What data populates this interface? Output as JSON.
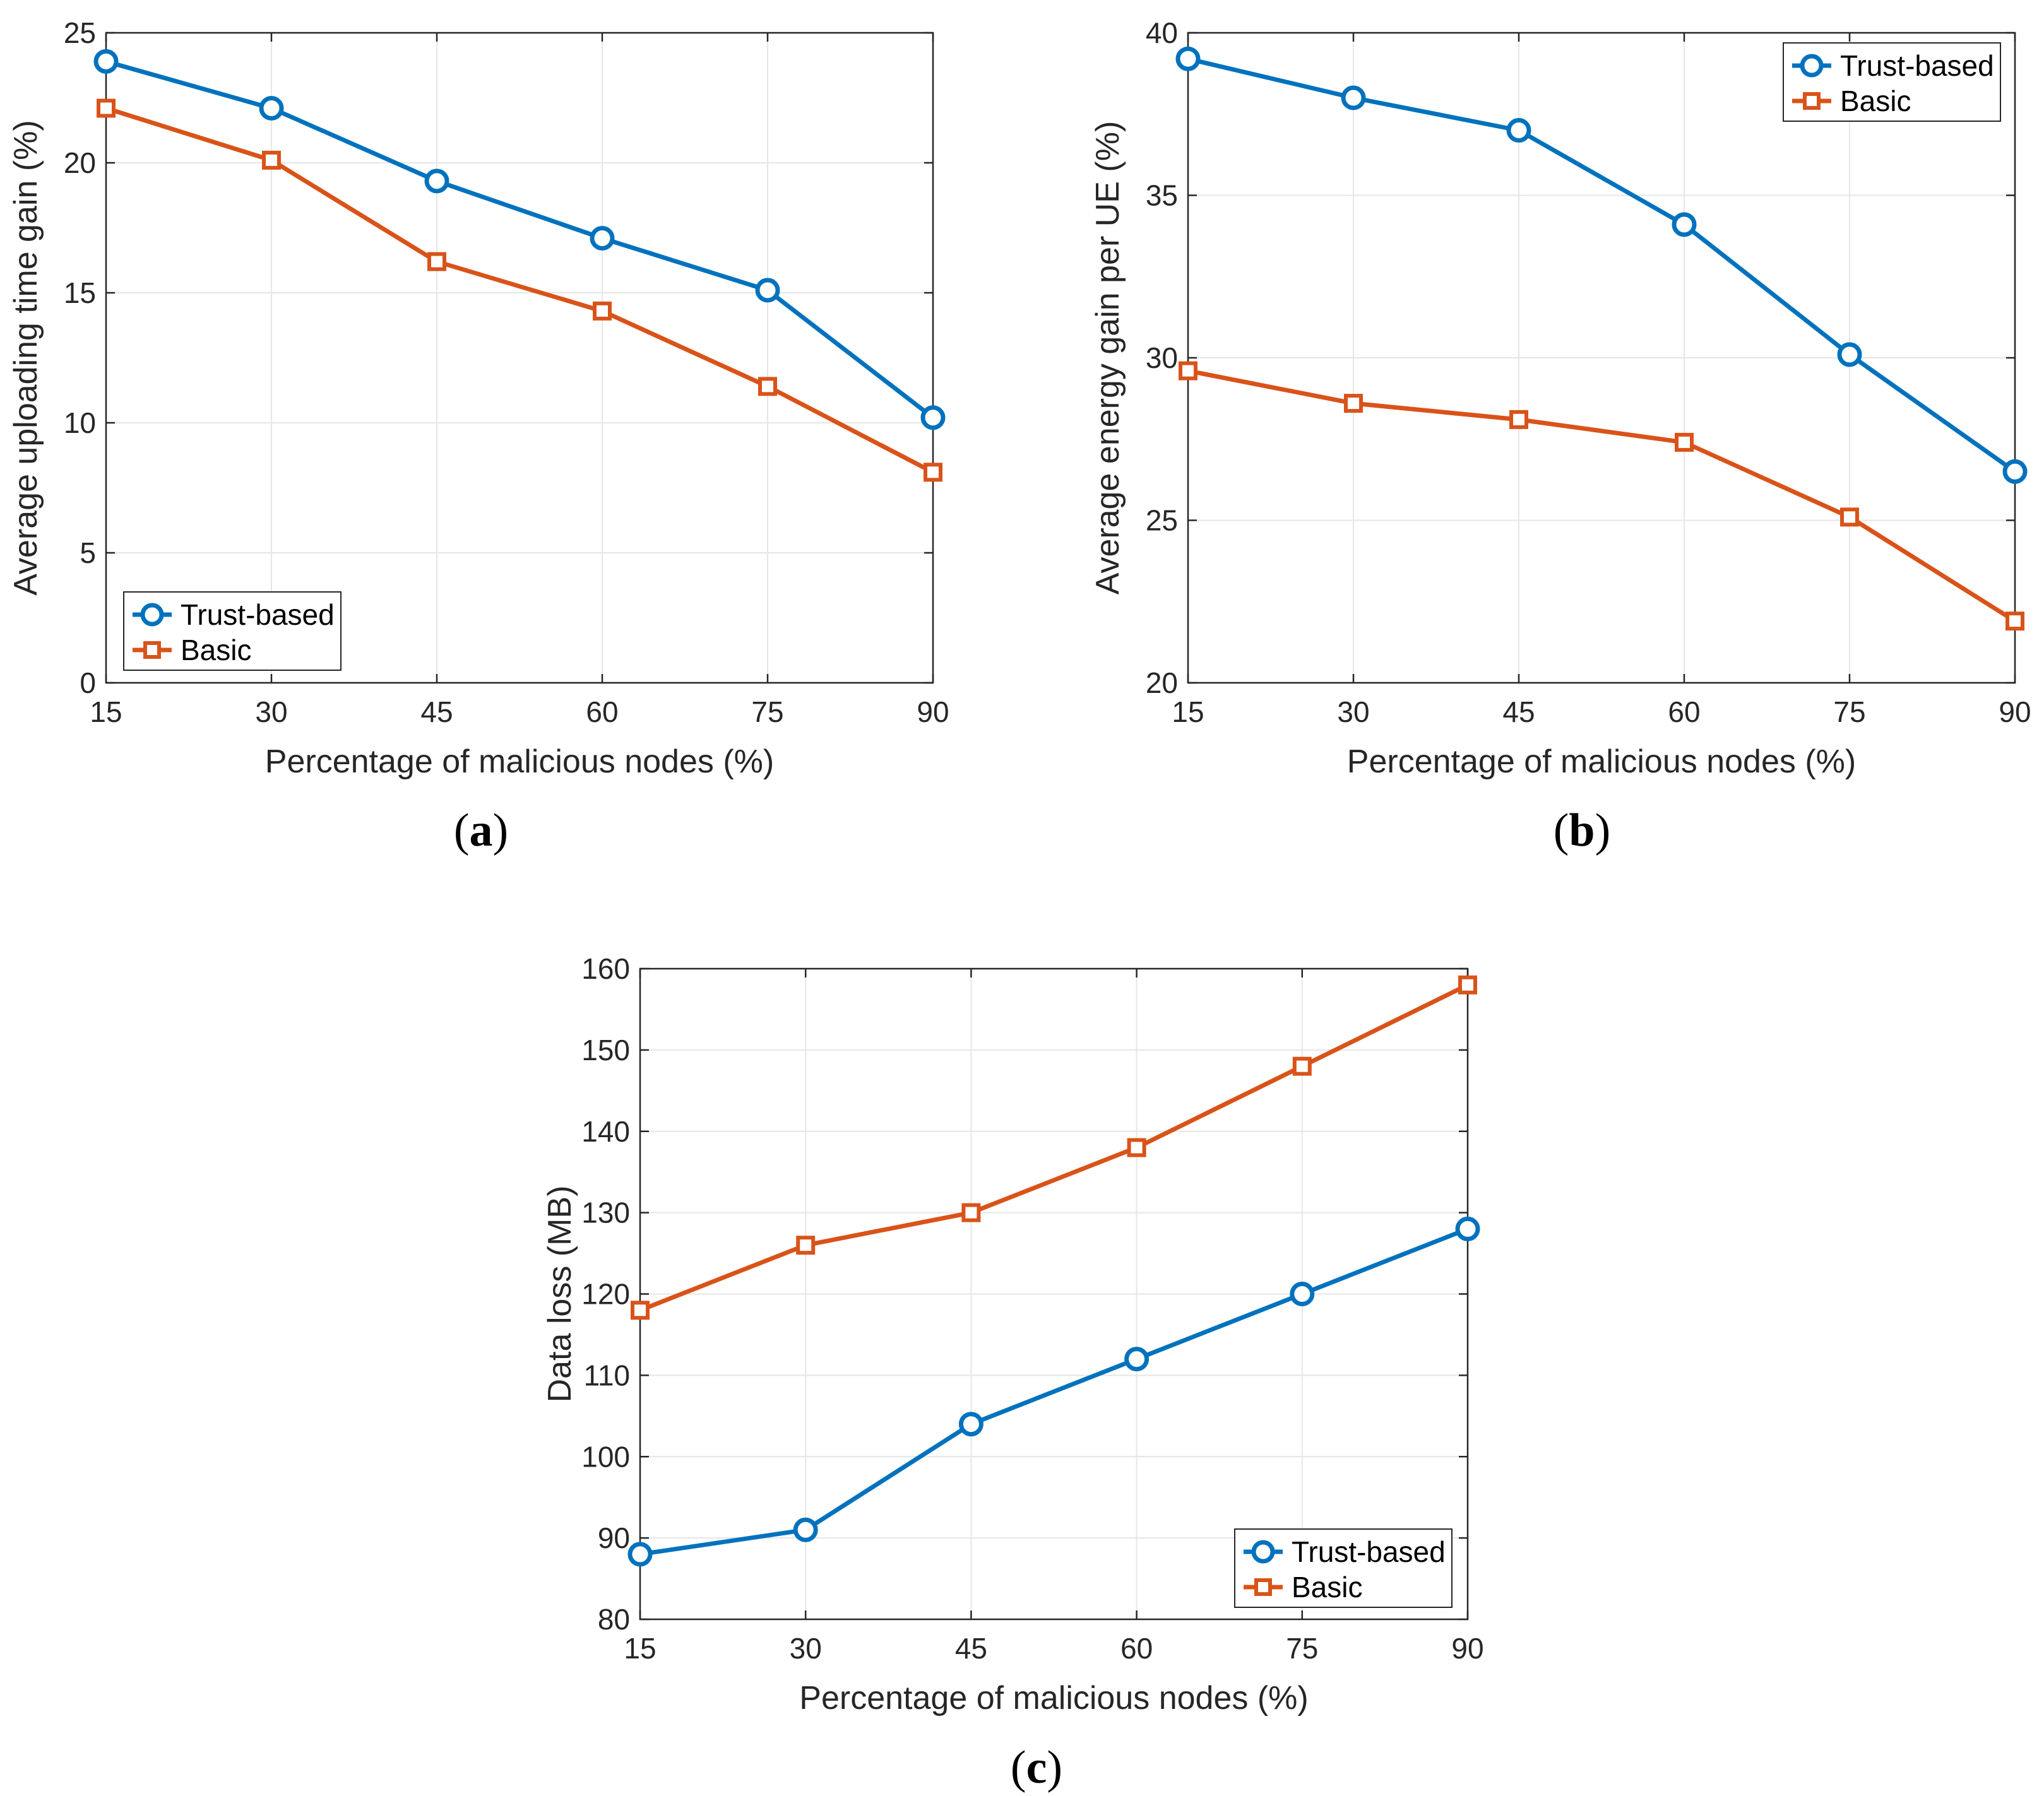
{
  "colors": {
    "trust": "#0072BD",
    "basic": "#D95319"
  },
  "chart_data": [
    {
      "type": "line",
      "panel": "a",
      "caption": "a",
      "x": [
        15,
        30,
        45,
        60,
        75,
        90
      ],
      "xlabel": "Percentage of malicious nodes (%)",
      "ylabel": "Average uploading time gain (%)",
      "xlim": [
        15,
        90
      ],
      "ylim": [
        0,
        25
      ],
      "xticks": [
        "15",
        "30",
        "45",
        "60",
        "75",
        "90"
      ],
      "yticks": [
        "0",
        "5",
        "10",
        "15",
        "20",
        "25"
      ],
      "grid": true,
      "legend_position": "bottom-left",
      "series": [
        {
          "name": "Trust-based",
          "marker": "circle",
          "values": [
            23.9,
            22.1,
            19.3,
            17.1,
            15.1,
            10.2
          ]
        },
        {
          "name": "Basic",
          "marker": "square",
          "values": [
            22.1,
            20.1,
            16.2,
            14.3,
            11.4,
            8.1
          ]
        }
      ]
    },
    {
      "type": "line",
      "panel": "b",
      "caption": "b",
      "x": [
        15,
        30,
        45,
        60,
        75,
        90
      ],
      "xlabel": "Percentage of malicious nodes (%)",
      "ylabel": "Average energy gain per UE (%)",
      "xlim": [
        15,
        90
      ],
      "ylim": [
        20,
        40
      ],
      "xticks": [
        "15",
        "30",
        "45",
        "60",
        "75",
        "90"
      ],
      "yticks": [
        "20",
        "25",
        "30",
        "35",
        "40"
      ],
      "grid": true,
      "legend_position": "top-right",
      "series": [
        {
          "name": "Trust-based",
          "marker": "circle",
          "values": [
            39.2,
            38.0,
            37.0,
            34.1,
            30.1,
            26.5
          ]
        },
        {
          "name": "Basic",
          "marker": "square",
          "values": [
            29.6,
            28.6,
            28.1,
            27.4,
            25.1,
            21.9
          ]
        }
      ]
    },
    {
      "type": "line",
      "panel": "c",
      "caption": "c",
      "x": [
        15,
        30,
        45,
        60,
        75,
        90
      ],
      "xlabel": "Percentage of malicious nodes (%)",
      "ylabel": "Data loss (MB)",
      "xlim": [
        15,
        90
      ],
      "ylim": [
        80,
        160
      ],
      "xticks": [
        "15",
        "30",
        "45",
        "60",
        "75",
        "90"
      ],
      "yticks": [
        "80",
        "90",
        "100",
        "110",
        "120",
        "130",
        "140",
        "150",
        "160"
      ],
      "grid": true,
      "legend_position": "bottom-right",
      "series": [
        {
          "name": "Trust-based",
          "marker": "circle",
          "values": [
            88,
            91,
            104,
            112,
            120,
            128
          ]
        },
        {
          "name": "Basic",
          "marker": "square",
          "values": [
            118,
            126,
            130,
            138,
            148,
            158
          ]
        }
      ]
    }
  ]
}
